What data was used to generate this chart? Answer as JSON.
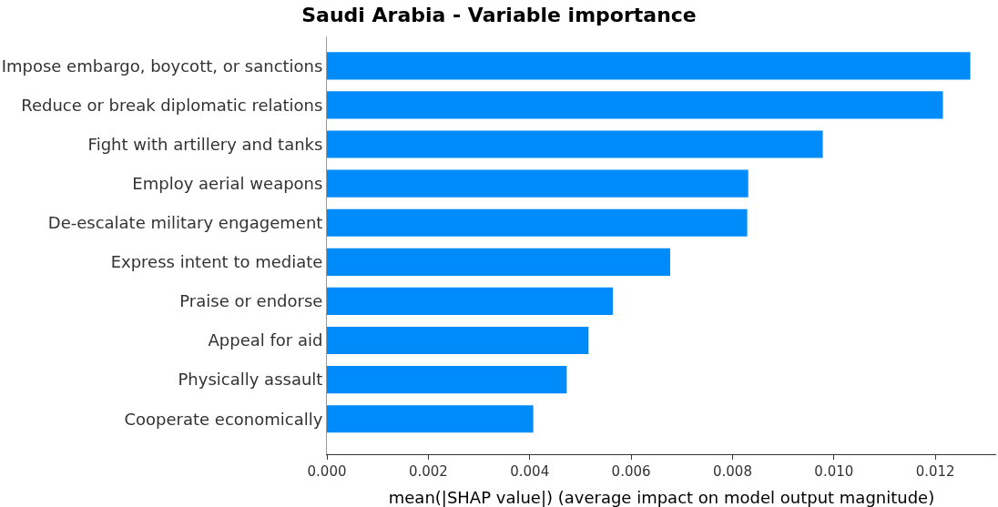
{
  "chart_data": {
    "type": "bar",
    "orientation": "horizontal",
    "title": "Saudi Arabia - Variable importance",
    "xlabel": "mean(|SHAP value|) (average impact on model output magnitude)",
    "categories": [
      "Impose embargo, boycott, or sanctions",
      "Reduce or break diplomatic relations",
      "Fight with artillery and tanks",
      "Employ aerial weapons",
      "De-escalate military engagement",
      "Express intent to mediate",
      "Praise or endorse",
      "Appeal for aid",
      "Physically assault",
      "Cooperate economically"
    ],
    "values": [
      0.01269,
      0.01215,
      0.00978,
      0.00831,
      0.00829,
      0.00677,
      0.00564,
      0.00516,
      0.00473,
      0.00407
    ],
    "color": "#008bfb",
    "xlim": [
      0,
      0.0132
    ],
    "xticks": [
      {
        "value": 0,
        "label": "0.000"
      },
      {
        "value": 0.002,
        "label": "0.002"
      },
      {
        "value": 0.004,
        "label": "0.004"
      },
      {
        "value": 0.006,
        "label": "0.006"
      },
      {
        "value": 0.008,
        "label": "0.008"
      },
      {
        "value": 0.01,
        "label": "0.010"
      },
      {
        "value": 0.012,
        "label": "0.012"
      }
    ],
    "relative": false
  }
}
